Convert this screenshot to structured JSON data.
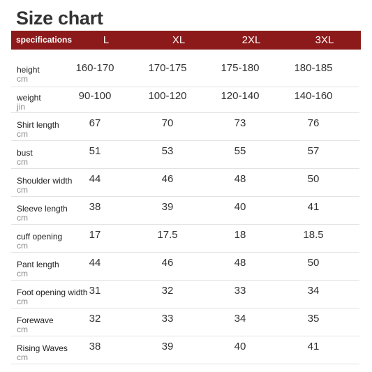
{
  "title": "Size chart",
  "header": {
    "first": "specifications",
    "sizes": [
      "L",
      "XL",
      "2XL",
      "3XL"
    ]
  },
  "rows": [
    {
      "label": "height",
      "unit": "cm",
      "values": [
        "160-170",
        "170-175",
        "175-180",
        "180-185"
      ]
    },
    {
      "label": "weight",
      "unit": "jin",
      "values": [
        "90-100",
        "100-120",
        "120-140",
        "140-160"
      ]
    },
    {
      "label": "Shirt length",
      "unit": "cm",
      "values": [
        "67",
        "70",
        "73",
        "76"
      ]
    },
    {
      "label": "bust",
      "unit": "cm",
      "values": [
        "51",
        "53",
        "55",
        "57"
      ]
    },
    {
      "label": "Shoulder width",
      "unit": "cm",
      "values": [
        "44",
        "46",
        "48",
        "50"
      ]
    },
    {
      "label": "Sleeve length",
      "unit": "cm",
      "values": [
        "38",
        "39",
        "40",
        "41"
      ]
    },
    {
      "label": "cuff opening",
      "unit": "cm",
      "values": [
        "17",
        "17.5",
        "18",
        "18.5"
      ]
    },
    {
      "label": "Pant length",
      "unit": "cm",
      "values": [
        "44",
        "46",
        "48",
        "50"
      ]
    },
    {
      "label": "Foot opening width",
      "unit": "cm",
      "values": [
        "31",
        "32",
        "33",
        "34"
      ]
    },
    {
      "label": "Forewave",
      "unit": "cm",
      "values": [
        "32",
        "33",
        "34",
        "35"
      ]
    },
    {
      "label": "Rising Waves",
      "unit": "cm",
      "values": [
        "38",
        "39",
        "40",
        "41"
      ]
    }
  ],
  "colors": {
    "header_bg": "#8c1a1a",
    "header_text": "#ffffff",
    "text": "#333333",
    "unit": "#8a8a8a",
    "divider": "#e3e3e3"
  }
}
